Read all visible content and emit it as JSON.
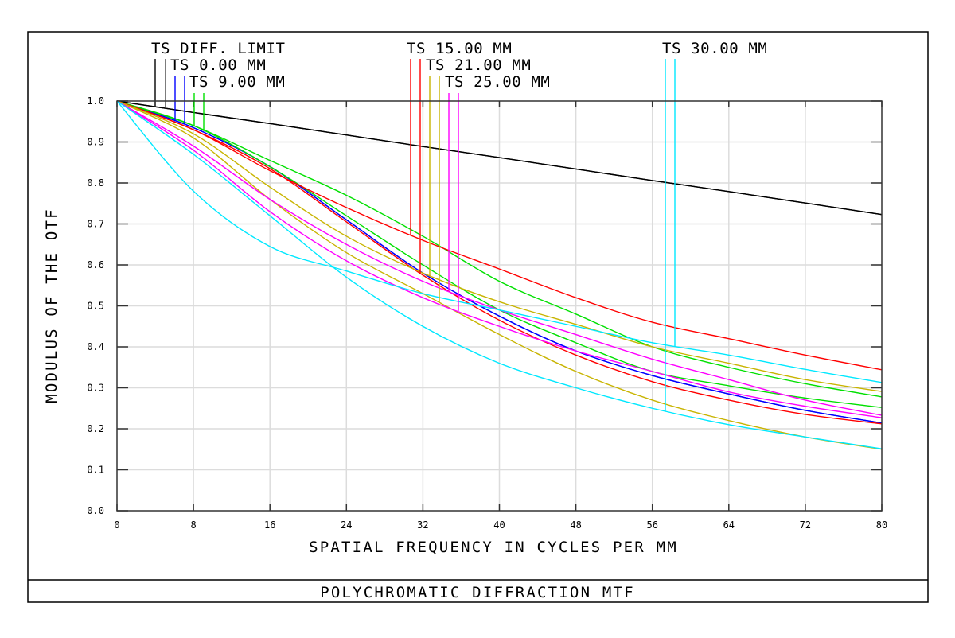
{
  "chart_data": {
    "type": "line",
    "title": "POLYCHROMATIC DIFFRACTION MTF",
    "xlabel": "SPATIAL FREQUENCY IN CYCLES PER MM",
    "ylabel": "MODULUS OF THE OTF",
    "xlim": [
      0,
      80
    ],
    "ylim": [
      0,
      1
    ],
    "grid": true,
    "xticks": [
      "0",
      "8",
      "16",
      "24",
      "32",
      "40",
      "48",
      "56",
      "64",
      "72",
      "80"
    ],
    "yticks": [
      "0.0",
      "0.1",
      "0.2",
      "0.3",
      "0.4",
      "0.5",
      "0.6",
      "0.7",
      "0.8",
      "0.9",
      "1.0"
    ],
    "x": [
      0,
      8,
      16,
      24,
      32,
      40,
      48,
      56,
      64,
      72,
      80
    ],
    "series": [
      {
        "name": "TS DIFF. LIMIT",
        "color": "#000000",
        "tangential": [
          1.0,
          0.972,
          0.945,
          0.917,
          0.889,
          0.862,
          0.834,
          0.806,
          0.779,
          0.751,
          0.723
        ],
        "sagittal": [
          1.0,
          0.972,
          0.945,
          0.917,
          0.889,
          0.862,
          0.834,
          0.806,
          0.779,
          0.751,
          0.723
        ]
      },
      {
        "name": "TS 0.00 MM",
        "color": "#0000ff",
        "tangential": [
          1.0,
          0.935,
          0.84,
          0.71,
          0.58,
          0.475,
          0.39,
          0.33,
          0.285,
          0.245,
          0.214
        ],
        "sagittal": [
          1.0,
          0.935,
          0.84,
          0.71,
          0.58,
          0.475,
          0.39,
          0.33,
          0.285,
          0.245,
          0.214
        ]
      },
      {
        "name": "TS 9.00 MM",
        "color": "#00e000",
        "tangential": [
          1.0,
          0.94,
          0.855,
          0.77,
          0.67,
          0.56,
          0.48,
          0.4,
          0.35,
          0.31,
          0.278
        ],
        "sagittal": [
          1.0,
          0.94,
          0.84,
          0.72,
          0.6,
          0.49,
          0.41,
          0.34,
          0.305,
          0.275,
          0.252
        ]
      },
      {
        "name": "TS 15.00 MM",
        "color": "#ff0000",
        "tangential": [
          1.0,
          0.93,
          0.83,
          0.74,
          0.66,
          0.59,
          0.52,
          0.46,
          0.42,
          0.38,
          0.344
        ],
        "sagittal": [
          1.0,
          0.93,
          0.835,
          0.705,
          0.575,
          0.465,
          0.38,
          0.315,
          0.27,
          0.235,
          0.212
        ]
      },
      {
        "name": "TS 21.00 MM",
        "color": "#c8b400",
        "tangential": [
          1.0,
          0.92,
          0.79,
          0.67,
          0.58,
          0.51,
          0.455,
          0.4,
          0.36,
          0.32,
          0.291
        ],
        "sagittal": [
          1.0,
          0.91,
          0.76,
          0.63,
          0.53,
          0.43,
          0.34,
          0.27,
          0.22,
          0.18,
          0.15
        ]
      },
      {
        "name": "TS 25.00 MM",
        "color": "#ff00ff",
        "tangential": [
          1.0,
          0.89,
          0.76,
          0.65,
          0.56,
          0.49,
          0.43,
          0.37,
          0.32,
          0.27,
          0.233
        ],
        "sagittal": [
          1.0,
          0.88,
          0.73,
          0.61,
          0.52,
          0.45,
          0.39,
          0.34,
          0.29,
          0.255,
          0.227
        ]
      },
      {
        "name": "TS 30.00 MM",
        "color": "#00e8ff",
        "tangential": [
          1.0,
          0.87,
          0.72,
          0.57,
          0.45,
          0.36,
          0.3,
          0.25,
          0.21,
          0.18,
          0.151
        ],
        "sagittal": [
          1.0,
          0.78,
          0.645,
          0.585,
          0.53,
          0.49,
          0.45,
          0.41,
          0.38,
          0.345,
          0.313
        ]
      }
    ]
  }
}
